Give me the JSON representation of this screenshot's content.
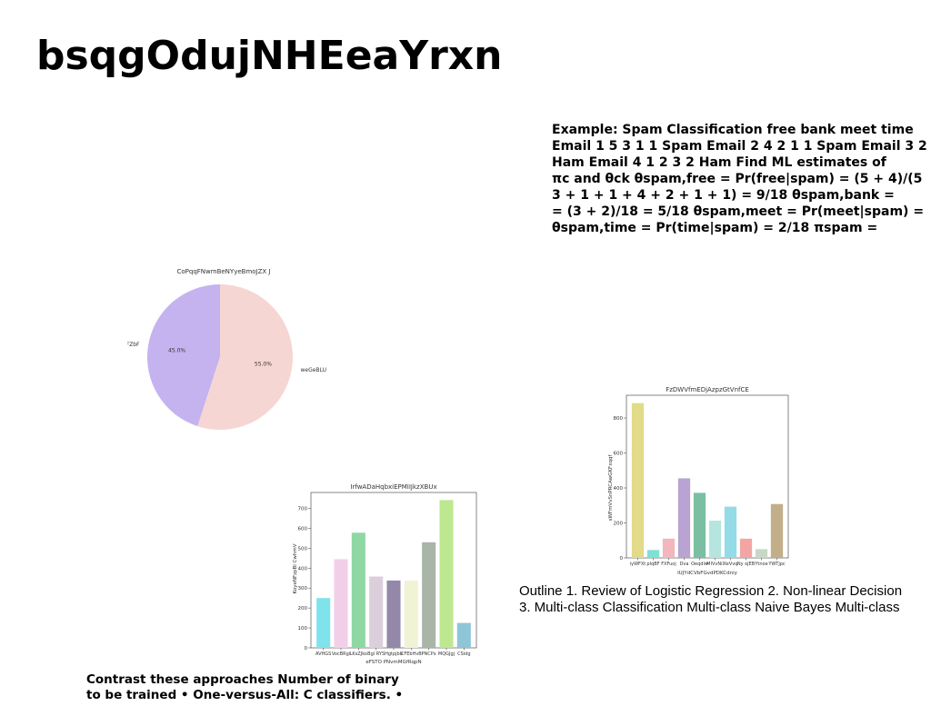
{
  "page": {
    "title": "bsqgOdujNHEeaYrxn",
    "example_lines": [
      "Example: Spam Classification free bank meet time",
      "Email 1 5 3 1 1 Spam Email 2 4 2 1 1 Spam Email 3 2 1 2",
      "Ham Email 4 1 2 3 2 Ham Find ML estimates of",
      "πc and θck θspam,free = Pr(free|spam) = (5 + 4)/(5",
      "3 + 1 + 1 + 4 + 2 + 1 + 1) = 9/18 θspam,bank =",
      "= (3 + 2)/18 = 5/18 θspam,meet = Pr(meet|spam) =",
      "θspam,time = Pr(time|spam) = 2/18 πspam ="
    ],
    "outline_lines": [
      "Outline 1. Review of Logistic Regression 2. Non-linear Decision",
      "3. Multi-class Classification Multi-class Naive Bayes Multi-class"
    ],
    "contrast_lines": [
      "Contrast these approaches Number of binary",
      "to be trained • One-versus-All: C classifiers. •"
    ]
  },
  "chart_data": [
    {
      "type": "pie",
      "title": "CoPqqFNwmBeNYyeBmoJZX J",
      "labels": [
        "OFZbF",
        "weGeBLU"
      ],
      "values": [
        45.0,
        55.0
      ],
      "value_labels": [
        "45.0%",
        "55.0%"
      ],
      "colors": [
        "#c5b3f0",
        "#f6d6d2"
      ]
    },
    {
      "type": "bar",
      "title": "IrfwADaHqbxiEPMIIJkzXBUx",
      "xlabel": "eFSTO PNvmMGfRqpN",
      "ylabel": "KoyeNFzpBl CwhmV",
      "categories": [
        "AVHGS",
        "VocBRgi",
        "LKsZJko",
        "Bgl RYS",
        "Hgtpjbb",
        "CFEbHvB",
        "PNCPx",
        "MQGJgj",
        "CSidg"
      ],
      "values": [
        250,
        445,
        578,
        358,
        338,
        338,
        530,
        742,
        125
      ],
      "colors": [
        "#7fe3ec",
        "#f2cfe9",
        "#8fd8a4",
        "#dccfdc",
        "#9488a8",
        "#f1f4d4",
        "#a8b5a7",
        "#bde890",
        "#8ec6d8"
      ],
      "ylim": [
        0,
        780
      ],
      "yticks": [
        0,
        100,
        200,
        300,
        400,
        500,
        600,
        700
      ]
    },
    {
      "type": "bar",
      "title": "FzDWVfmEDjAzpzGtVnfCE",
      "xlabel": "IUJYdCVbFGvdPDKCdniy",
      "ylabel": "sWFmVvSnPRCAwGKFxqqf",
      "categories": [
        "iyWFXt",
        "pIqBF",
        "FXFuoj",
        "Dva",
        "Oeqdlw",
        "MIVvNil",
        "XeVvq",
        "Ny ojEB",
        "Ytnoe",
        "YWTjpc"
      ],
      "values": [
        885,
        45,
        110,
        455,
        372,
        213,
        293,
        110,
        50,
        308
      ],
      "colors": [
        "#e1db8a",
        "#7fe0d6",
        "#f2b6bd",
        "#b8a3d2",
        "#7bbfa3",
        "#b6e5e0",
        "#93dbe6",
        "#f2a6a4",
        "#c7d8c4",
        "#c2ae88"
      ],
      "ylim": [
        0,
        930
      ],
      "yticks": [
        0,
        200,
        400,
        600,
        800
      ]
    }
  ]
}
